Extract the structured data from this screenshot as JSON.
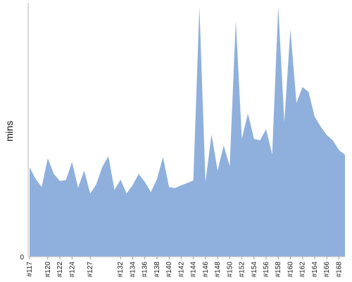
{
  "chart_data": {
    "type": "area",
    "ylabel": "mins",
    "x": [
      "#117",
      "#118",
      "#119",
      "#120",
      "#121",
      "#122",
      "#123",
      "#124",
      "#125",
      "#126",
      "#127",
      "#128",
      "#129",
      "#130",
      "#131",
      "#132",
      "#133",
      "#134",
      "#135",
      "#136",
      "#137",
      "#138",
      "#139",
      "#140",
      "#141",
      "#142",
      "#143",
      "#144",
      "#145",
      "#146",
      "#147",
      "#148",
      "#149",
      "#150",
      "#151",
      "#152",
      "#153",
      "#154",
      "#155",
      "#156",
      "#157",
      "#158",
      "#159",
      "#160",
      "#161",
      "#162",
      "#163",
      "#164",
      "#165",
      "#166",
      "#167",
      "#168",
      "#169"
    ],
    "values": [
      35.2,
      30.6,
      27.4,
      38.8,
      32.6,
      29.8,
      30.2,
      37.3,
      27.1,
      33.9,
      24.9,
      28.5,
      35.4,
      39.6,
      26.3,
      30.3,
      24.9,
      28.2,
      32.6,
      29.4,
      25.4,
      30.6,
      39.2,
      27.4,
      27.0,
      28.1,
      29.0,
      30.0,
      98.6,
      29.4,
      48.2,
      33.9,
      43.8,
      35.7,
      93.1,
      46.4,
      56.4,
      46.4,
      45.8,
      50.2,
      40.2,
      98.6,
      53.0,
      89.5,
      60.6,
      66.8,
      64.9,
      55.2,
      51.2,
      47.9,
      45.8,
      42.0,
      40.1
    ],
    "tick_labels": [
      "#117",
      "#120",
      "#122",
      "#124",
      "#127",
      "#132",
      "#134",
      "#136",
      "#138",
      "#140",
      "#142",
      "#144",
      "#146",
      "#148",
      "#150",
      "#152",
      "#154",
      "#156",
      "#158",
      "#160",
      "#162",
      "#164",
      "#166",
      "#168"
    ],
    "y_ticks": [
      "0"
    ],
    "ylim": [
      0,
      100
    ],
    "color": "#8fb0dc",
    "grid": false,
    "legend": "none"
  }
}
